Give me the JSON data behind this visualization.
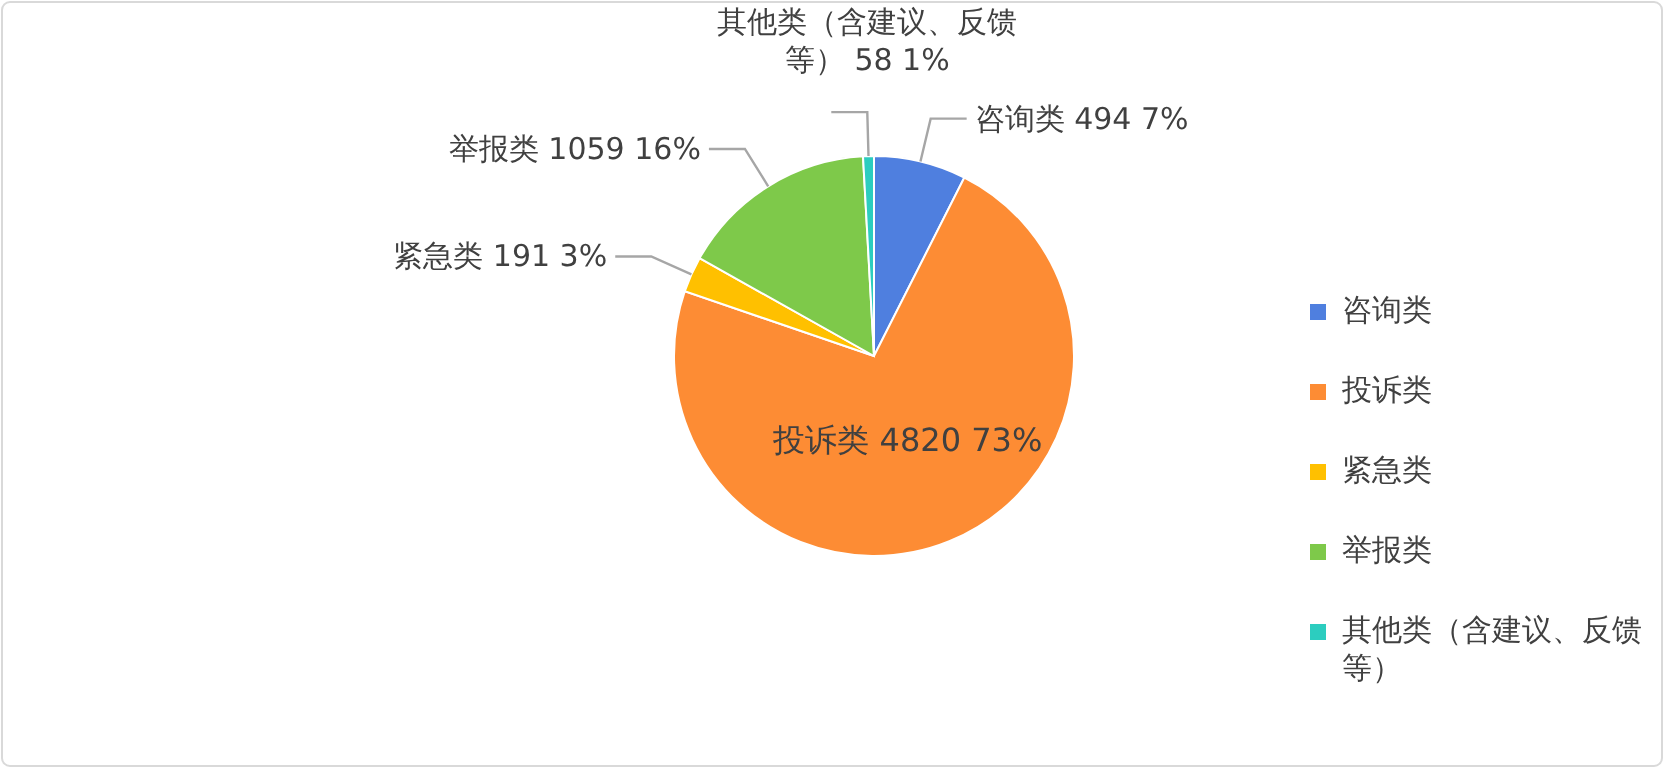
{
  "chart_data": {
    "type": "pie",
    "categories": [
      "咨询类",
      "投诉类",
      "紧急类",
      "举报类",
      "其他类（含建议、反馈等）"
    ],
    "values": [
      494,
      4820,
      191,
      1059,
      58
    ],
    "value_labels": [
      "494 7%",
      "4820 73%",
      "191 3%",
      "1059 16%",
      "58 1%"
    ],
    "colors": [
      "#4f7fdf",
      "#fd8c34",
      "#ffc000",
      "#7ec94a",
      "#2ccdbf"
    ],
    "legend": "right"
  }
}
